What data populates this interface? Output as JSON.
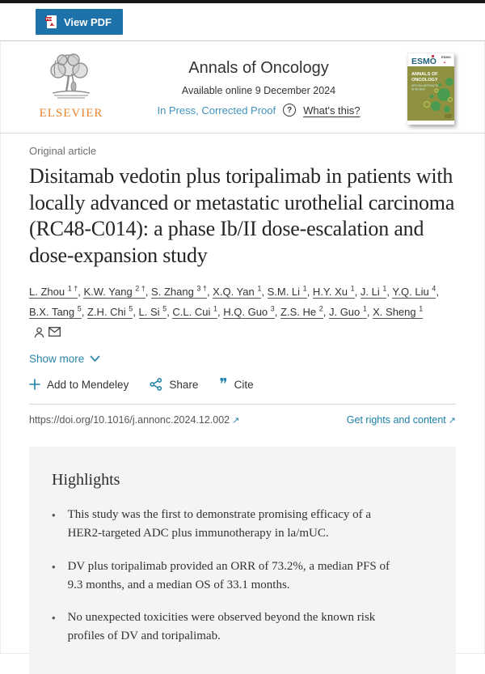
{
  "toolbar": {
    "view_pdf_label": "View PDF"
  },
  "header": {
    "journal_title": "Annals of Oncology",
    "availability": "Available online 9 December 2024",
    "status_link": "In Press, Corrected Proof",
    "help_glyph": "?",
    "whats_this": "What's this?",
    "publisher_name": "ELSEVIER",
    "cover": {
      "society_logo": "ESMO",
      "title_line1": "ANNALS OF",
      "title_line2": "ONCOLOGY"
    }
  },
  "article": {
    "type_label": "Original article",
    "title": "Disitamab vedotin plus toripalimab in patients with locally advanced or metastatic urothelial carcinoma (RC48-C014): a phase Ib/II dose-escalation and dose-expansion study",
    "authors": [
      {
        "name": "L. Zhou",
        "sup": "1 †"
      },
      {
        "name": "K.W. Yang",
        "sup": "2 †"
      },
      {
        "name": "S. Zhang",
        "sup": "3 †"
      },
      {
        "name": "X.Q. Yan",
        "sup": "1"
      },
      {
        "name": "S.M. Li",
        "sup": "1"
      },
      {
        "name": "H.Y. Xu",
        "sup": "1"
      },
      {
        "name": "J. Li",
        "sup": "1"
      },
      {
        "name": "Y.Q. Liu",
        "sup": "4"
      },
      {
        "name": "B.X. Tang",
        "sup": "5"
      },
      {
        "name": "Z.H. Chi",
        "sup": "5"
      },
      {
        "name": "L. Si",
        "sup": "5"
      },
      {
        "name": "C.L. Cui",
        "sup": "1"
      },
      {
        "name": "H.Q. Guo",
        "sup": "3"
      },
      {
        "name": "Z.S. He",
        "sup": "2"
      },
      {
        "name": "J. Guo",
        "sup": "1"
      },
      {
        "name": "X. Sheng",
        "sup": "1",
        "corresponding": true
      }
    ],
    "show_more": "Show more",
    "actions": {
      "mendeley": "Add to Mendeley",
      "share": "Share",
      "cite": "Cite"
    },
    "doi": "https://doi.org/10.1016/j.annonc.2024.12.002",
    "rights_link": "Get rights and content"
  },
  "highlights": {
    "title": "Highlights",
    "items": [
      "This study was the first to demonstrate promising efficacy of a HER2-targeted ADC plus immunotherapy in la/mUC.",
      "DV plus toripalimab provided an ORR of 73.2%, a median PFS of 9.3 months, and a median OS of 33.1 months.",
      "No unexpected toxicities were observed beyond the known risk profiles of DV and toripalimab."
    ]
  },
  "colors": {
    "button_blue": "#1d72aa",
    "teal_link": "#1d7fa8",
    "light_blue_link": "#4094be",
    "elsevier_orange": "#e8822c",
    "highlight_bg": "#f4f4f4"
  }
}
